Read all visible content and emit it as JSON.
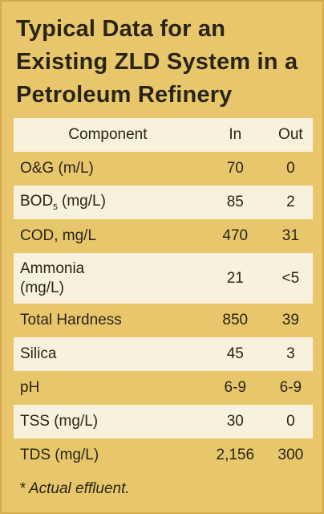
{
  "title": "Typical Data for an Existing ZLD System in a Petroleum Refinery",
  "table": {
    "header": [
      "Component",
      "In",
      "Out"
    ],
    "rows": [
      {
        "label": [
          "O&G (m/L)"
        ],
        "in": "70",
        "out": "0"
      },
      {
        "label": [
          "BOD"
        ],
        "sub": "5",
        "suffix": " (mg/L)",
        "in": "85",
        "out": "2"
      },
      {
        "label": [
          "COD, mg/L"
        ],
        "in": "470",
        "out": "31"
      },
      {
        "label": [
          "Ammonia",
          "(mg/L)"
        ],
        "in": "21",
        "out": "<5"
      },
      {
        "label": [
          "Total Hardness"
        ],
        "in": "850",
        "out": "39"
      },
      {
        "label": [
          "Silica"
        ],
        "in": "45",
        "out": "3"
      },
      {
        "label": [
          "pH"
        ],
        "in": "6-9",
        "out": "6-9"
      },
      {
        "label": [
          "TSS (mg/L)"
        ],
        "in": "30",
        "out": "0"
      },
      {
        "label": [
          "TDS (mg/L)"
        ],
        "in": "2,156",
        "out": "300"
      }
    ]
  },
  "footnote": "* Actual effluent."
}
